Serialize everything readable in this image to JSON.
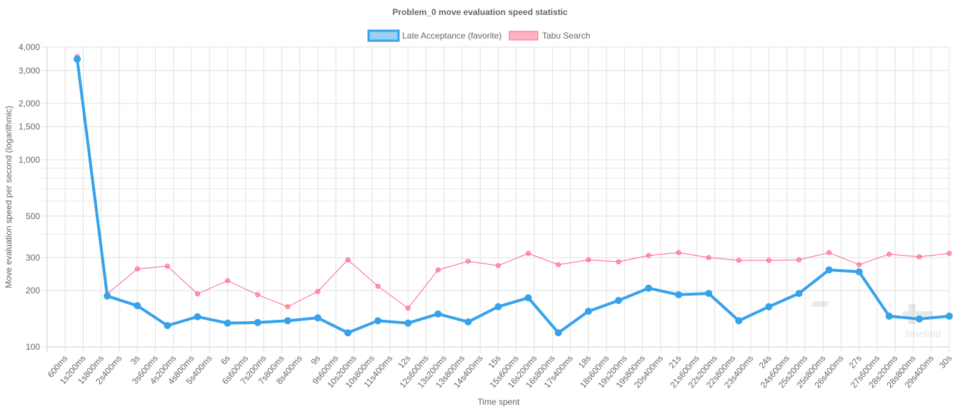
{
  "chart_data": {
    "type": "line",
    "title": "Problem_0 move evaluation speed statistic",
    "xlabel": "Time spent",
    "ylabel": "Move evaluation speed per second (logarithmic)",
    "x_unit": "ms",
    "xlim": [
      0,
      30000
    ],
    "x_tick_step": 600,
    "ylim": [
      100,
      4000
    ],
    "y_scale": "log",
    "y_ticks": [
      100,
      200,
      300,
      500,
      1000,
      1500,
      2000,
      3000,
      4000
    ],
    "y_tick_labels": [
      "100",
      "200",
      "300",
      "500",
      "1,000",
      "1,500",
      "2,000",
      "3,000",
      "4,000"
    ],
    "y_minor_grid": [
      400,
      600,
      700,
      800,
      900
    ],
    "grid": true,
    "legend_position": "top",
    "x": [
      1000,
      2000,
      3000,
      4000,
      5000,
      6000,
      7000,
      8000,
      9000,
      10000,
      11000,
      12000,
      13000,
      14000,
      15000,
      16000,
      17000,
      18000,
      19000,
      20000,
      21000,
      22000,
      23000,
      24000,
      25000,
      26000,
      27000,
      28000,
      29000,
      30000
    ],
    "series": [
      {
        "name": "Late Acceptance (favorite)",
        "color": "#36a2eb",
        "values": [
          3450,
          187,
          166,
          130,
          145,
          134,
          135,
          138,
          143,
          119,
          138,
          134,
          150,
          136,
          164,
          183,
          119,
          155,
          177,
          206,
          190,
          193,
          138,
          164,
          193,
          258,
          252,
          146,
          141,
          146
        ]
      },
      {
        "name": "Tabu Search",
        "color": "#ff6384",
        "values": [
          3560,
          192,
          261,
          270,
          192,
          226,
          190,
          164,
          198,
          292,
          211,
          161,
          258,
          287,
          272,
          316,
          275,
          292,
          285,
          308,
          319,
          300,
          290,
          290,
          292,
          319,
          275,
          313,
          303,
          316
        ]
      }
    ]
  },
  "watermark": "timefold"
}
